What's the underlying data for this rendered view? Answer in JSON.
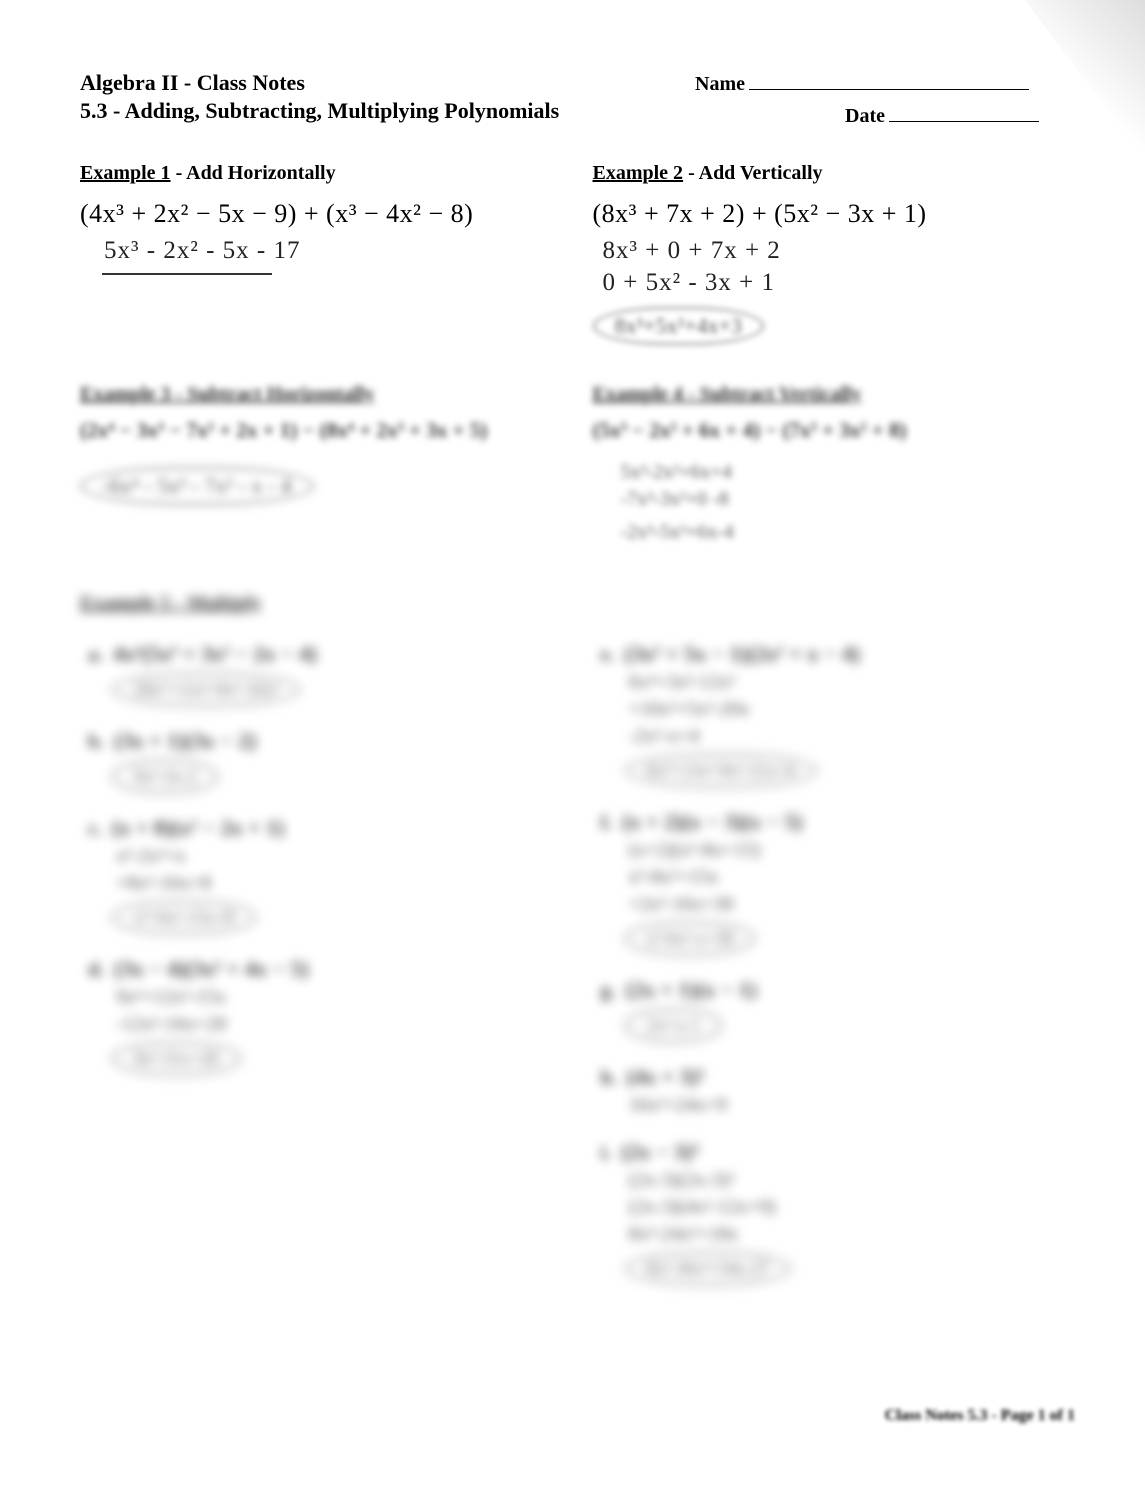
{
  "header": {
    "course_title": "Algebra II - Class Notes",
    "section_title": "5.3 - Adding, Subtracting, Multiplying Polynomials",
    "name_label": "Name",
    "date_label": "Date"
  },
  "example1": {
    "heading_underlined": "Example 1",
    "heading_rest": " - Add Horizontally",
    "problem": "(4x³ + 2x² − 5x − 9) + (x³ − 4x² − 8)",
    "student_work": "5x³ - 2x² - 5x - 17"
  },
  "example2": {
    "heading_underlined": "Example 2",
    "heading_rest": " - Add Vertically",
    "problem": "(8x³ + 7x + 2) + (5x² − 3x + 1)",
    "work_line1": "8x³ + 0 + 7x + 2",
    "work_line2": "0 + 5x² - 3x + 1",
    "answer_bubble": "8x³+5x²+4x+3"
  },
  "example3": {
    "heading": "Example 3 - Subtract Horizontally",
    "problem": "(2x⁴ − 3x³ − 7x² + 2x + 1) − (8x⁴ + 2x³ + 3x + 5)",
    "answer_bubble": "-6x⁴ - 5x³ - 7x² - x - 4"
  },
  "example4": {
    "heading": "Example 4 - Subtract Vertically",
    "problem": "(5x³ − 2x² + 6x + 4) − (7x³ + 3x² + 8)",
    "work_line1": "5x³-2x²+6x+4",
    "work_line2": "-7x³-3x²+0 -8",
    "answer": "-2x³-5x²+6x-4"
  },
  "example5": {
    "heading": "Example 5 - Multiply",
    "left_items": [
      {
        "label": "a.",
        "math": "4x²(5x³ + 3x² − 2x − 4)",
        "bubble": "20x⁵+12x⁴-8x³-16x²"
      },
      {
        "label": "b.",
        "math": "(3x + 1)(3x − 2)",
        "bubble": "9x²-3x-2"
      },
      {
        "label": "c.",
        "math": "(x + 8)(x² − 2x + 1)",
        "work1": "x³-2x²+x",
        "work2": "+8x²-16x+8",
        "bubble": "x³+6x²-15x+8"
      },
      {
        "label": "d.",
        "math": "(3x − 4)(3x² + 4x − 5)",
        "work1": "9x³+12x²-15x",
        "work2": "-12x²-16x+20",
        "bubble": "9x³-31x+20"
      }
    ],
    "right_items": [
      {
        "label": "e.",
        "math": "(3x² + 5x − 1)(2x² + x − 4)",
        "work1": "6x⁴+3x³-12x²",
        "work2": "+10x³+5x²-20x",
        "work3": "-2x²-x+4",
        "bubble": "6x⁴+13x³-9x²-21x+4"
      },
      {
        "label": "f.",
        "math": "(x + 2)(x − 3)(x − 5)",
        "work1": "(x+2)(x²-8x+15)",
        "work2": "x³-8x²+15x",
        "work3": "+2x²-16x+30",
        "bubble": "x³-6x²-x+30"
      },
      {
        "label": "g.",
        "math": "(2x + 1)(x − 1)",
        "bubble": "2x²-x-1"
      },
      {
        "label": "h.",
        "math": "(4x + 3)²",
        "work1": "16x²+24x+9"
      },
      {
        "label": "i.",
        "math": "(2x − 3)³",
        "work1": "(2x-3)(2x-3)²",
        "work2": "(2x-3)(4x²-12x+9)",
        "work3": "8x³-24x²+18x",
        "bubble": "8x³-36x²+54x-27"
      }
    ]
  },
  "footer": "Class Notes 5.3 - Page 1 of 1"
}
